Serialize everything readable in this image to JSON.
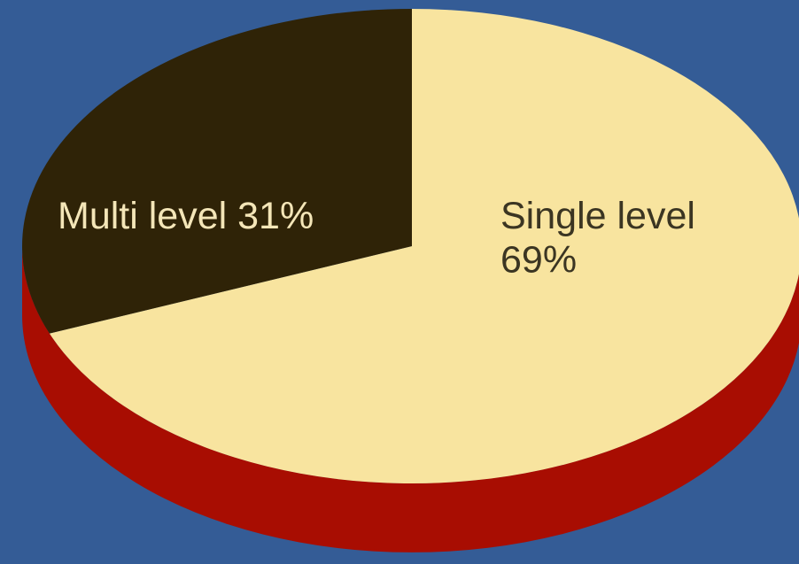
{
  "colors": {
    "background": "#345C96",
    "side": "#A80D02",
    "slice_colors": [
      "#F8E49F",
      "#2F2307"
    ],
    "label_colors": [
      "#3B3522",
      "#F4E6B8"
    ]
  },
  "chart_data": {
    "type": "pie",
    "title": "",
    "style": "3d-tilted",
    "legend": "none",
    "slices": [
      {
        "label_line1": "Single level",
        "label_line2": "69%",
        "value": 69
      },
      {
        "label_line1": "Multi level 31%",
        "label_line2": "",
        "value": 31
      }
    ]
  }
}
